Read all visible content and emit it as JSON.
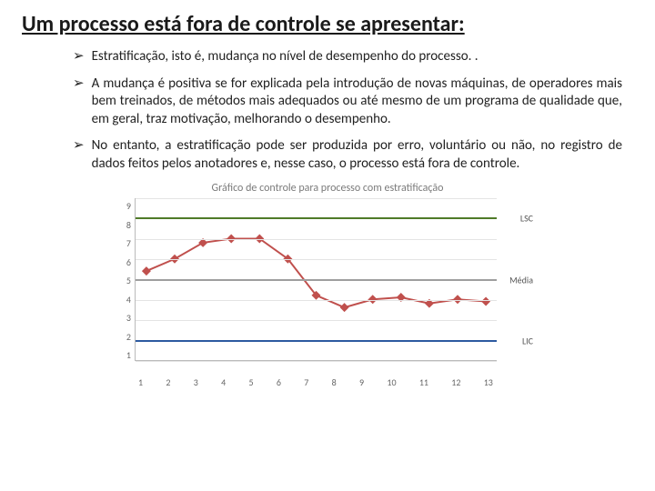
{
  "title": "Um processo está fora de controle se apresentar:",
  "bullets": [
    "Estratificação, isto é, mudança no nível de desempenho do processo. .",
    "A mudança é positiva se for explicada pela introdução de novas máquinas, de operadores mais bem treinados, de métodos mais adequados ou até mesmo de um programa de qualidade que, em geral, traz motivação, melhorando o desempenho.",
    "No entanto, a estratificação pode ser produzida por erro, voluntário ou não, no registro de dados feitos pelos anotadores e, nesse caso, o processo está fora de controle."
  ],
  "chart": {
    "type": "line",
    "title": "Gráfico de controle para processo com estratificação",
    "x_categories": [
      "1",
      "2",
      "3",
      "4",
      "5",
      "6",
      "7",
      "8",
      "9",
      "10",
      "11",
      "12",
      "13"
    ],
    "y_values": [
      5.4,
      6.0,
      6.8,
      7.0,
      7.0,
      6.0,
      4.2,
      3.6,
      4.0,
      4.1,
      3.8,
      4.0,
      3.9
    ],
    "ylim": [
      1,
      9
    ],
    "ytick_step": 1,
    "series_color": "#c0504d",
    "marker_style": "diamond",
    "marker_size": 5,
    "line_width": 2,
    "reference_lines": [
      {
        "label": "LSC",
        "y": 8.0,
        "color": "#4f7a28",
        "width": 2
      },
      {
        "label": "Média",
        "y": 5.0,
        "color": "#9e9e9e",
        "width": 2
      },
      {
        "label": "LIC",
        "y": 2.0,
        "color": "#2d5aa0",
        "width": 2
      }
    ],
    "background_color": "#ffffff",
    "grid_color": "#e4e4e4",
    "axis_color": "#bbbbbb",
    "tick_fontsize": 10,
    "title_fontsize": 12,
    "title_color": "#7a7a7a"
  }
}
